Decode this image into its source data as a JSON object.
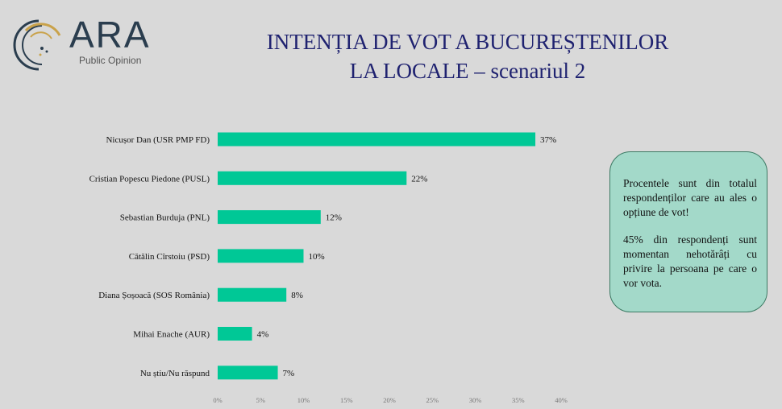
{
  "logo": {
    "name": "ARA",
    "subtitle": "Public Opinion"
  },
  "title_line1": "INTENȚIA DE VOT A BUCUREȘTENILOR",
  "title_line2": "LA LOCALE – scenariul 2",
  "note": {
    "p1": "Procentele sunt din totalul respondenților care au ales o opțiune de vot!",
    "p2": "45% din respondenți sunt momentan nehotărâți cu privire la persoana pe care o vor vota."
  },
  "colors": {
    "bar": "#00c896",
    "title": "#1f2270",
    "note_bg": "#a3d9c9"
  },
  "chart_data": {
    "type": "bar",
    "orientation": "horizontal",
    "categories": [
      "Nicușor Dan (USR PMP FD)",
      "Cristian Popescu Piedone (PUSL)",
      "Sebastian Burduja (PNL)",
      "Cătălin Cîrstoiu (PSD)",
      "Diana Șoșoacă (SOS România)",
      "Mihai Enache (AUR)",
      "Nu știu/Nu răspund"
    ],
    "values": [
      37,
      22,
      12,
      10,
      8,
      4,
      7
    ],
    "data_labels": [
      "37%",
      "22%",
      "12%",
      "10%",
      "8%",
      "4%",
      "7%"
    ],
    "xlim": [
      0,
      40
    ],
    "xticks": [
      "0%",
      "5%",
      "10%",
      "15%",
      "20%",
      "25%",
      "30%",
      "35%",
      "40%"
    ],
    "grid": false
  }
}
